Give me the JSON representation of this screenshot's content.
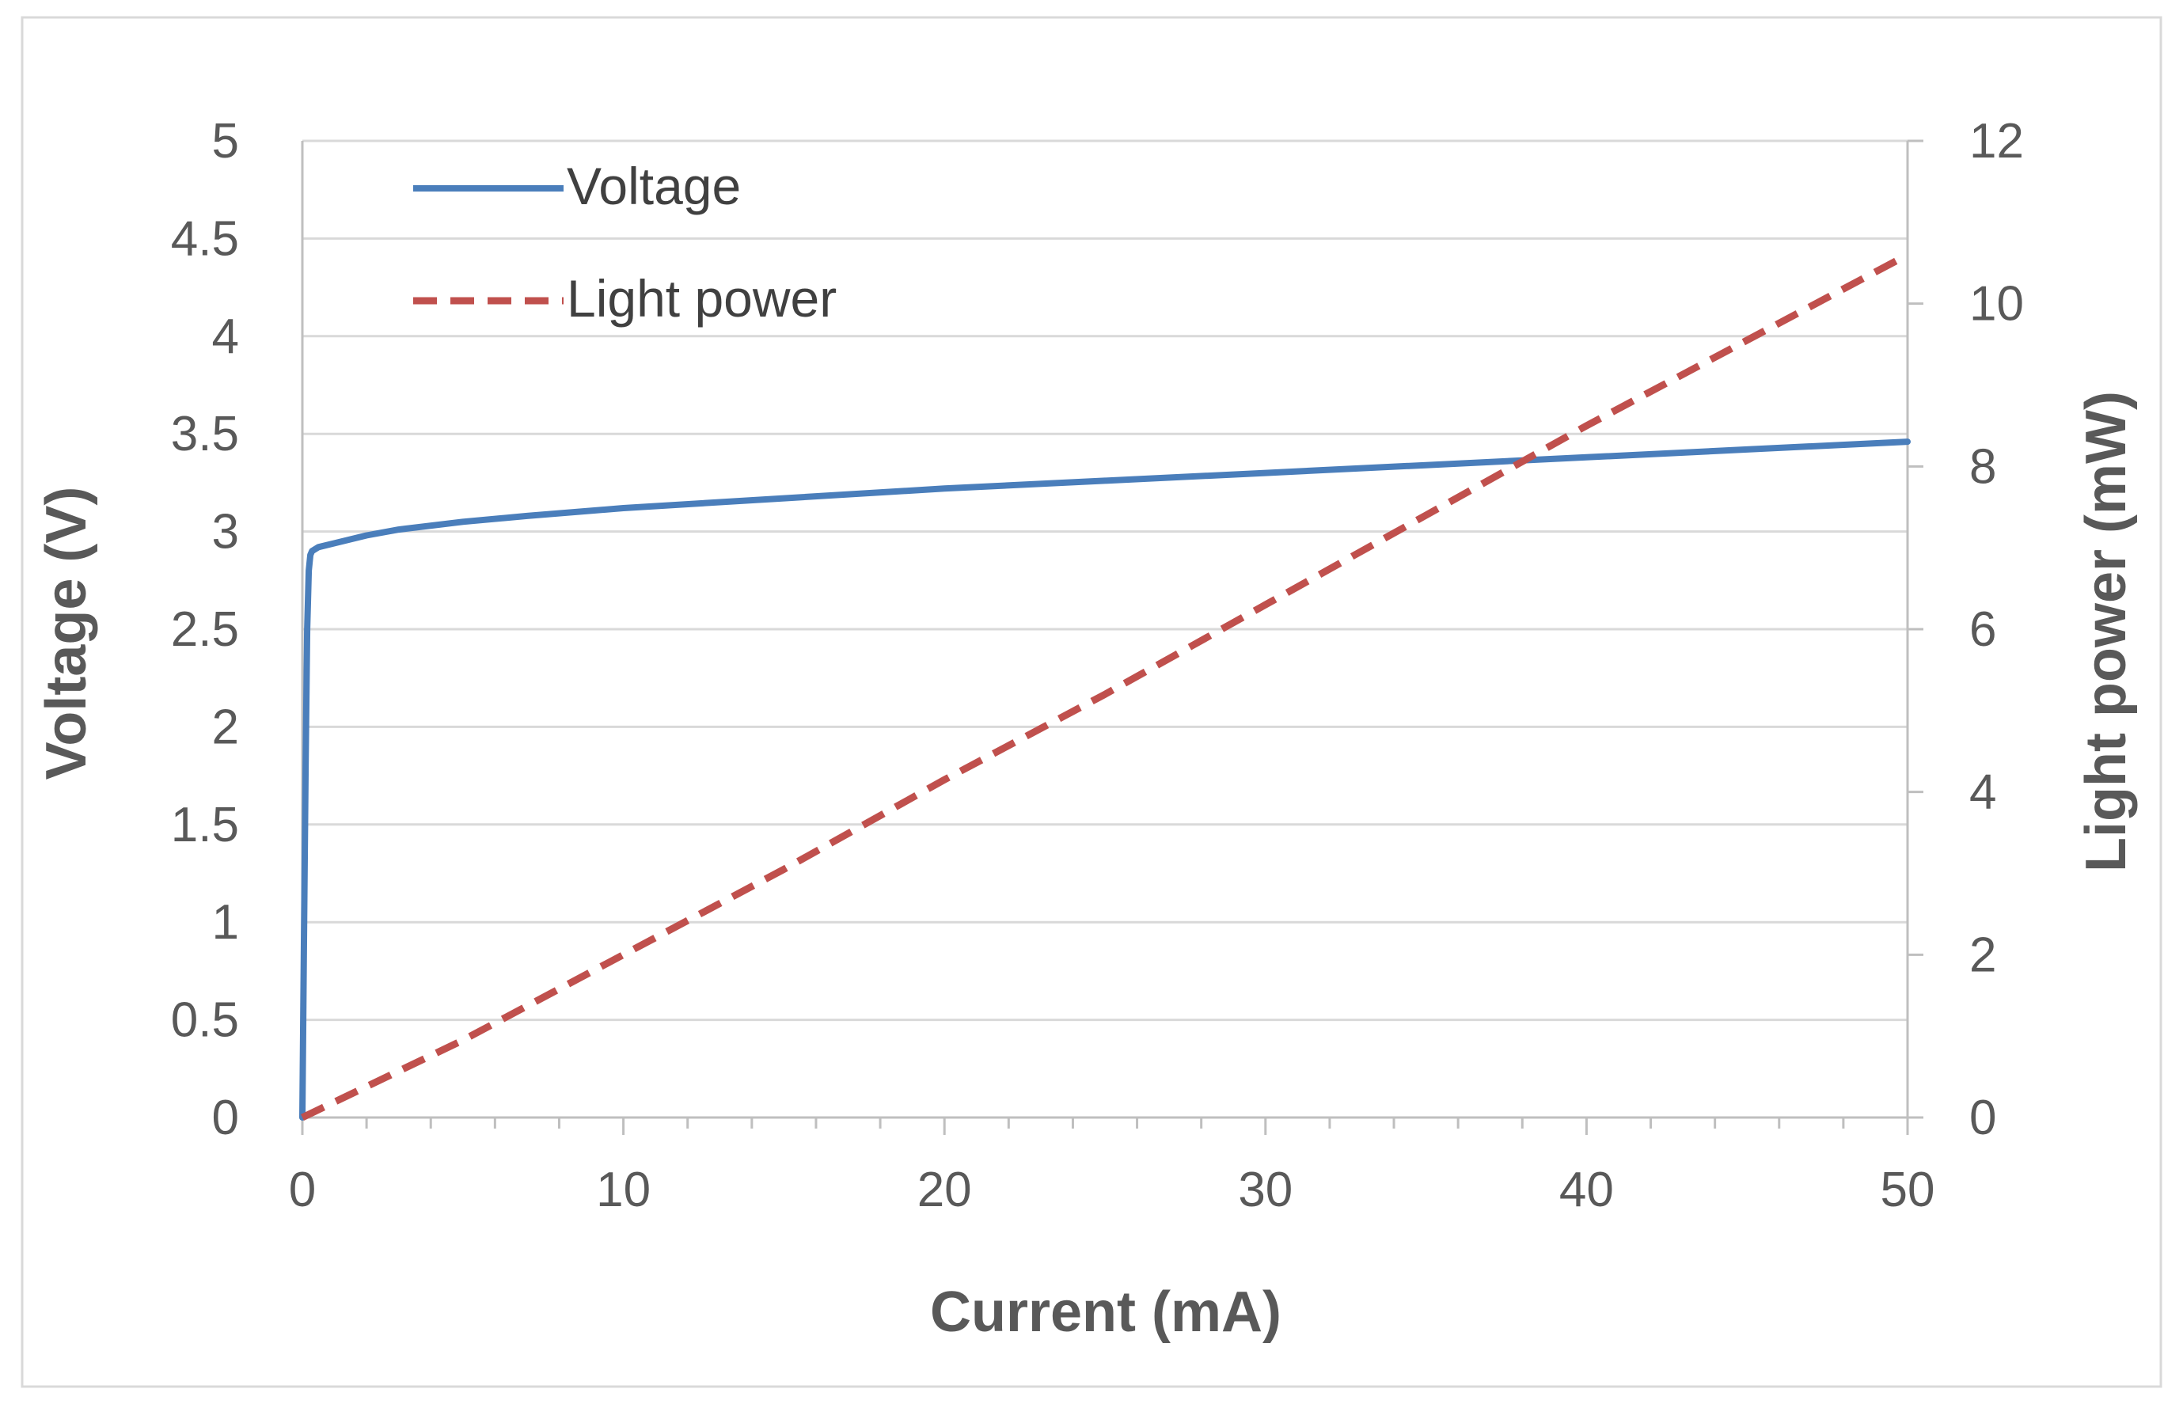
{
  "chart_data": {
    "type": "line",
    "title": "",
    "xlabel": "Current (mA)",
    "ylabel": "Voltage (V)",
    "y2label": "Light power (mW)",
    "xlim": [
      0,
      50
    ],
    "ylim": [
      0,
      5
    ],
    "y2lim": [
      0,
      12
    ],
    "xticks": [
      "0",
      "10",
      "20",
      "30",
      "40",
      "50"
    ],
    "yticks": [
      "0",
      "0.5",
      "1",
      "1.5",
      "2",
      "2.5",
      "3",
      "3.5",
      "4",
      "4.5",
      "5"
    ],
    "y2ticks": [
      "0",
      "2",
      "4",
      "6",
      "8",
      "10",
      "12"
    ],
    "grid": true,
    "legend": "top-left",
    "colors": {
      "voltage": "#4a7ebb",
      "light": "#c0504d",
      "text": "#595959"
    },
    "series": [
      {
        "name": "Voltage",
        "axis": "left",
        "style": "solid",
        "x": [
          0,
          0.05,
          0.1,
          0.15,
          0.2,
          0.25,
          0.3,
          0.5,
          1,
          2,
          3,
          5,
          7,
          10,
          15,
          20,
          25,
          30,
          35,
          40,
          45,
          50
        ],
        "y": [
          0,
          0.9,
          1.8,
          2.5,
          2.8,
          2.88,
          2.9,
          2.92,
          2.94,
          2.98,
          3.01,
          3.05,
          3.08,
          3.12,
          3.17,
          3.22,
          3.26,
          3.3,
          3.34,
          3.38,
          3.42,
          3.46
        ]
      },
      {
        "name": "Light power",
        "axis": "right",
        "style": "dashed",
        "x": [
          0,
          5,
          10,
          15,
          20,
          25,
          30,
          35,
          40,
          45,
          50
        ],
        "y": [
          0,
          0.95,
          2.0,
          3.05,
          4.15,
          5.2,
          6.3,
          7.4,
          8.5,
          9.55,
          10.6
        ]
      }
    ]
  }
}
